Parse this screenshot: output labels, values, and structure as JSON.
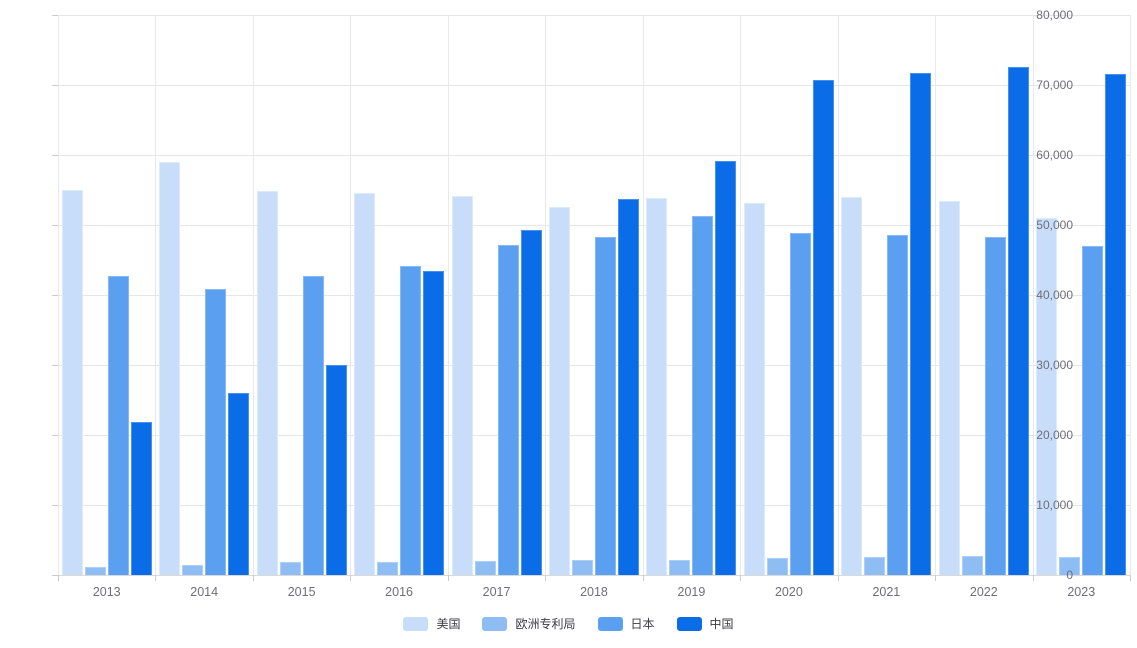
{
  "chart_data": {
    "type": "bar",
    "title": "",
    "xlabel": "",
    "ylabel": "",
    "categories": [
      "2013",
      "2014",
      "2015",
      "2016",
      "2017",
      "2018",
      "2019",
      "2020",
      "2021",
      "2022",
      "2023"
    ],
    "series": [
      {
        "name": "美国",
        "color": "#c8ddf9",
        "border_color": "#dcebfc",
        "values": [
          55000,
          59000,
          54900,
          54500,
          54100,
          52600,
          53800,
          53200,
          54000,
          53400,
          51000
        ]
      },
      {
        "name": "欧洲专利局",
        "color": "#8ebdf4",
        "border_color": "#aed0f8",
        "values": [
          1100,
          1400,
          1800,
          1900,
          2000,
          2100,
          2200,
          2400,
          2600,
          2700,
          2500
        ]
      },
      {
        "name": "日本",
        "color": "#5b9ff0",
        "border_color": "#87baf5",
        "values": [
          42700,
          40900,
          42700,
          44200,
          47100,
          48300,
          51300,
          48800,
          48500,
          48300,
          47000
        ]
      },
      {
        "name": "中国",
        "color": "#0a6ce6",
        "border_color": "#4691f1",
        "values": [
          21800,
          26000,
          30000,
          43400,
          49300,
          53700,
          59200,
          70700,
          71700,
          72600,
          71600
        ]
      }
    ],
    "ylim": [
      0,
      80000
    ],
    "y_tick_step": 10000,
    "y_tick_labels": [
      "0",
      "10,000",
      "20,000",
      "30,000",
      "40,000",
      "50,000",
      "60,000",
      "70,000",
      "80,000"
    ],
    "grid": true,
    "legend_position": "bottom-center"
  },
  "colors": {
    "background": "#ffffff",
    "gridline": "#e6e6e6",
    "axis_text": "#6e6e78",
    "legend_text": "#3c3c43"
  }
}
